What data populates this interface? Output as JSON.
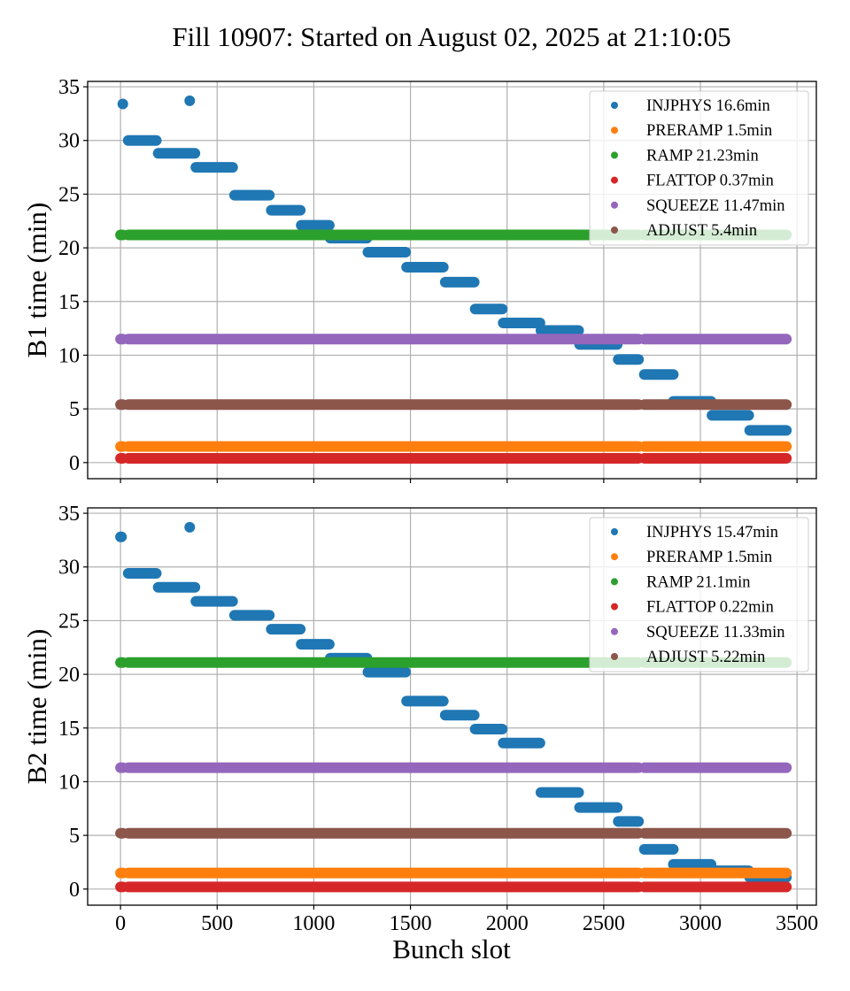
{
  "chart_data": {
    "type": "scatter",
    "title": "Fill 10907: Started on August 02, 2025 at 21:10:05",
    "xlabel": "Bunch slot",
    "xlim": [
      -170,
      3600
    ],
    "xticks": [
      0,
      500,
      1000,
      1500,
      2000,
      2500,
      3000,
      3500
    ],
    "yticks": [
      0,
      5,
      10,
      15,
      20,
      25,
      30,
      35
    ],
    "grid": true,
    "legend_position": "top-right",
    "series_colors": {
      "INJPHYS": "#1f77b4",
      "PRERAMP": "#ff7f0e",
      "RAMP": "#2ca02c",
      "FLATTOP": "#d62728",
      "SQUEEZE": "#9467bd",
      "ADJUST": "#8c564b"
    },
    "filled_slot_ranges": [
      [
        0,
        12
      ],
      [
        40,
        2680
      ],
      [
        2710,
        3445
      ]
    ],
    "panels": [
      {
        "ylabel": "B1 time (min)",
        "ylim": [
          -1.5,
          35.5
        ],
        "legend": [
          {
            "name": "INJPHYS",
            "label": "INJPHYS 16.6min"
          },
          {
            "name": "PRERAMP",
            "label": "PRERAMP 1.5min"
          },
          {
            "name": "RAMP",
            "label": "RAMP 21.23min"
          },
          {
            "name": "FLATTOP",
            "label": "FLATTOP 0.37min"
          },
          {
            "name": "SQUEEZE",
            "label": "SQUEEZE 11.47min"
          },
          {
            "name": "ADJUST",
            "label": "ADJUST 5.4min"
          }
        ],
        "constant_series": [
          {
            "name": "RAMP",
            "value": 21.2
          },
          {
            "name": "SQUEEZE",
            "value": 11.5
          },
          {
            "name": "ADJUST",
            "value": 5.4
          },
          {
            "name": "PRERAMP",
            "value": 1.5
          },
          {
            "name": "FLATTOP",
            "value": 0.4
          }
        ],
        "injphys_segments": [
          {
            "x0": 12,
            "x1": 12,
            "y": 33.4
          },
          {
            "x0": 358,
            "x1": 358,
            "y": 33.7
          },
          {
            "x0": 40,
            "x1": 185,
            "y": 30.0
          },
          {
            "x0": 195,
            "x1": 385,
            "y": 28.8
          },
          {
            "x0": 390,
            "x1": 580,
            "y": 27.5
          },
          {
            "x0": 590,
            "x1": 770,
            "y": 24.9
          },
          {
            "x0": 780,
            "x1": 930,
            "y": 23.5
          },
          {
            "x0": 935,
            "x1": 1080,
            "y": 22.1
          },
          {
            "x0": 1085,
            "x1": 1275,
            "y": 20.9
          },
          {
            "x0": 1280,
            "x1": 1475,
            "y": 19.6
          },
          {
            "x0": 1480,
            "x1": 1670,
            "y": 18.2
          },
          {
            "x0": 1680,
            "x1": 1830,
            "y": 16.8
          },
          {
            "x0": 1835,
            "x1": 1975,
            "y": 14.3
          },
          {
            "x0": 1980,
            "x1": 2170,
            "y": 13.0
          },
          {
            "x0": 2175,
            "x1": 2370,
            "y": 12.3
          },
          {
            "x0": 2375,
            "x1": 2570,
            "y": 11.0
          },
          {
            "x0": 2575,
            "x1": 2680,
            "y": 9.6
          },
          {
            "x0": 2710,
            "x1": 2860,
            "y": 8.2
          },
          {
            "x0": 2860,
            "x1": 3055,
            "y": 5.7
          },
          {
            "x0": 3060,
            "x1": 3250,
            "y": 4.4
          },
          {
            "x0": 3255,
            "x1": 3445,
            "y": 3.0
          }
        ]
      },
      {
        "ylabel": "B2 time (min)",
        "ylim": [
          -1.5,
          35.5
        ],
        "legend": [
          {
            "name": "INJPHYS",
            "label": "INJPHYS 15.47min"
          },
          {
            "name": "PRERAMP",
            "label": "PRERAMP 1.5min"
          },
          {
            "name": "RAMP",
            "label": "RAMP 21.1min"
          },
          {
            "name": "FLATTOP",
            "label": "FLATTOP 0.22min"
          },
          {
            "name": "SQUEEZE",
            "label": "SQUEEZE 11.33min"
          },
          {
            "name": "ADJUST",
            "label": "ADJUST 5.22min"
          }
        ],
        "constant_series": [
          {
            "name": "RAMP",
            "value": 21.1
          },
          {
            "name": "SQUEEZE",
            "value": 11.3
          },
          {
            "name": "ADJUST",
            "value": 5.2
          },
          {
            "name": "PRERAMP",
            "value": 1.5
          },
          {
            "name": "FLATTOP",
            "value": 0.2
          }
        ],
        "injphys_segments": [
          {
            "x0": 0,
            "x1": 5,
            "y": 32.8
          },
          {
            "x0": 358,
            "x1": 358,
            "y": 33.7
          },
          {
            "x0": 40,
            "x1": 185,
            "y": 29.4
          },
          {
            "x0": 195,
            "x1": 385,
            "y": 28.1
          },
          {
            "x0": 390,
            "x1": 580,
            "y": 26.8
          },
          {
            "x0": 590,
            "x1": 770,
            "y": 25.5
          },
          {
            "x0": 780,
            "x1": 930,
            "y": 24.2
          },
          {
            "x0": 935,
            "x1": 1080,
            "y": 22.8
          },
          {
            "x0": 1085,
            "x1": 1275,
            "y": 21.5
          },
          {
            "x0": 1280,
            "x1": 1475,
            "y": 20.2
          },
          {
            "x0": 1480,
            "x1": 1670,
            "y": 17.5
          },
          {
            "x0": 1680,
            "x1": 1830,
            "y": 16.2
          },
          {
            "x0": 1835,
            "x1": 1975,
            "y": 14.9
          },
          {
            "x0": 1980,
            "x1": 2170,
            "y": 13.6
          },
          {
            "x0": 2175,
            "x1": 2370,
            "y": 9.0
          },
          {
            "x0": 2375,
            "x1": 2570,
            "y": 7.6
          },
          {
            "x0": 2575,
            "x1": 2680,
            "y": 6.3
          },
          {
            "x0": 2710,
            "x1": 2860,
            "y": 3.7
          },
          {
            "x0": 2860,
            "x1": 3055,
            "y": 2.3
          },
          {
            "x0": 3060,
            "x1": 3250,
            "y": 1.7
          },
          {
            "x0": 3255,
            "x1": 3445,
            "y": 1.1
          }
        ]
      }
    ]
  }
}
